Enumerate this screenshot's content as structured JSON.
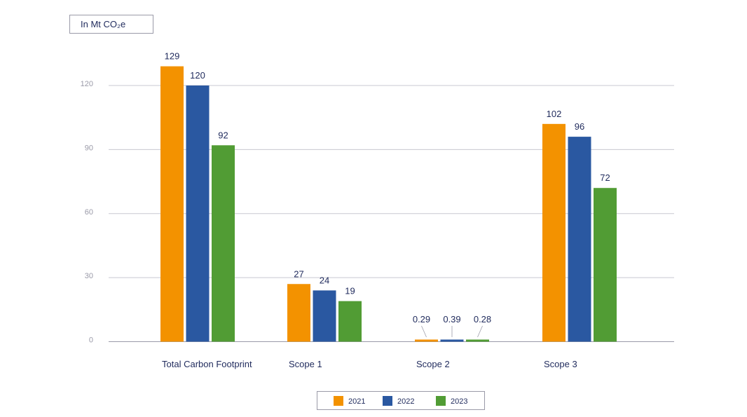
{
  "chart_data": {
    "type": "bar",
    "unit_label": "In Mt CO₂e",
    "categories": [
      "Total Carbon Footprint",
      "Scope 1",
      "Scope 2",
      "Scope 3"
    ],
    "series": [
      {
        "name": "2021",
        "color": "#f39200",
        "values": [
          129,
          27,
          0.29,
          102
        ],
        "labels": [
          "129",
          "27",
          "0.29",
          "102"
        ]
      },
      {
        "name": "2022",
        "color": "#2a58a1",
        "values": [
          120,
          24,
          0.39,
          96
        ],
        "labels": [
          "120",
          "24",
          "0.39",
          "96"
        ]
      },
      {
        "name": "2023",
        "color": "#519c34",
        "values": [
          92,
          19,
          0.28,
          72
        ],
        "labels": [
          "92",
          "19",
          "0.28",
          "72"
        ]
      }
    ],
    "yticks": [
      0,
      30,
      60,
      90,
      120
    ],
    "ylim": [
      0,
      130
    ],
    "grid": true,
    "legend_position": "bottom-center"
  }
}
